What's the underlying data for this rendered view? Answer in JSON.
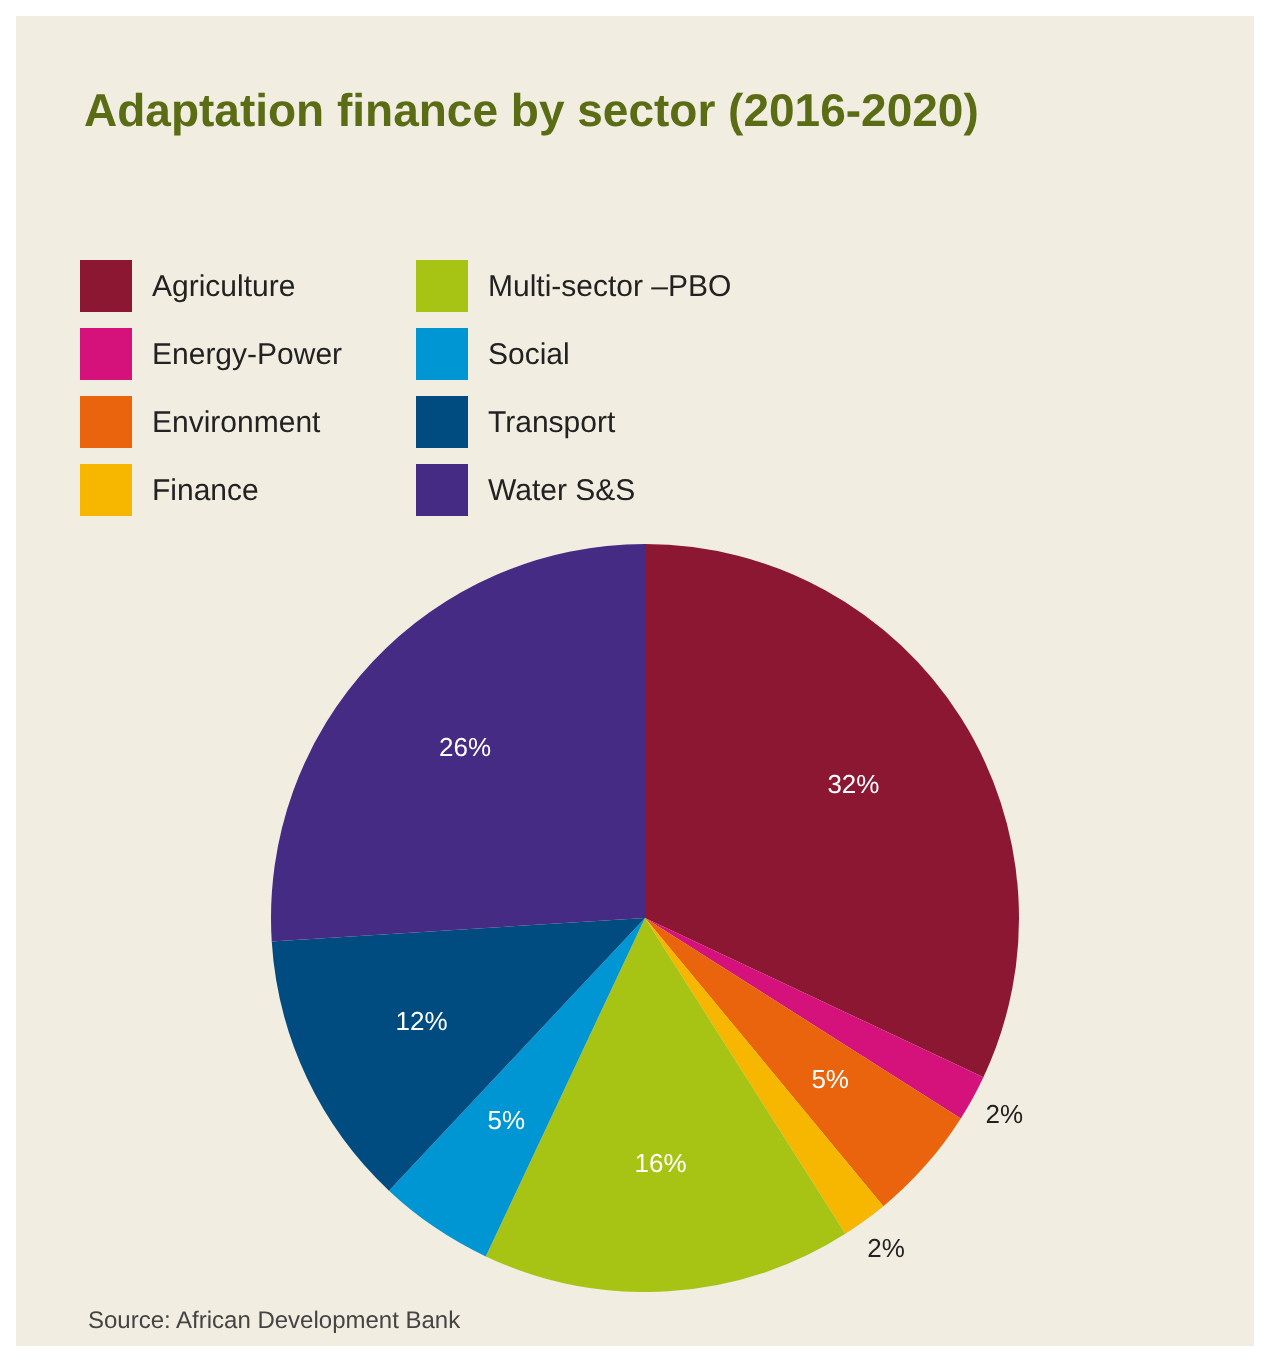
{
  "chart_data": {
    "type": "pie",
    "title": "Adaptation finance by sector (2016-2020)",
    "categories": [
      "Agriculture",
      "Energy-Power",
      "Environment",
      "Finance",
      "Multi-sector –PBO",
      "Social",
      "Transport",
      "Water S&S"
    ],
    "values": [
      32,
      2,
      5,
      2,
      16,
      5,
      12,
      26
    ],
    "colors": [
      "#8c1733",
      "#d5127c",
      "#e9640c",
      "#f7b600",
      "#a7c415",
      "#0096d4",
      "#004c80",
      "#452b84"
    ],
    "legend": "top left",
    "value_labels": [
      "32%",
      "2%",
      "5%",
      "2%",
      "16%",
      "5%",
      "12%",
      "26%"
    ],
    "annotations": [
      "Source: African Development Bank"
    ]
  }
}
